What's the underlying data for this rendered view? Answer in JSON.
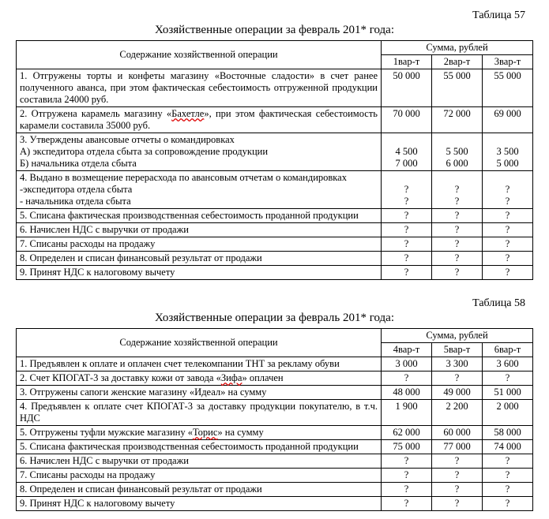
{
  "table57": {
    "label": "Таблица 57",
    "title": "Хозяйственные операции за февраль 201* года:",
    "head_desc": "Содержание хозяйственной операции",
    "head_sum": "Сумма, рублей",
    "variants": [
      "1вар-т",
      "2вар-т",
      "3вар-т"
    ],
    "rows": [
      {
        "desc_pre": "1. Отгружены торты и конфеты магазину «Восточные сладости» в счет ранее полученного аванса, при этом фактическая себестоимость отгруженной продукции составила 24000 руб.",
        "vals": [
          "50 000",
          "55 000",
          "55 000"
        ]
      },
      {
        "desc_pre": "2. Отгружена карамель магазину «",
        "wave": "Бахетле",
        "desc_post": "», при этом фактическая себестоимость карамели составила 35000 руб.",
        "vals": [
          "70 000",
          "72 000",
          "69 000"
        ]
      },
      {
        "desc_pre": "3. Утверждены авансовые отчеты о командировках\nА) экспедитора отдела сбыта за сопровождение продукции\nБ) начальника отдела сбыта",
        "vals": [
          "\n4 500\n7 000",
          "\n5 500\n6 000",
          "\n3 500\n5 000"
        ]
      },
      {
        "desc_pre": "4. Выдано в возмещение перерасхода по авансовым отчетам о командировках\n-экспедитора отдела сбыта\n- начальника отдела сбыта",
        "vals": [
          "\n?\n?",
          "\n?\n?",
          "\n?\n?"
        ]
      },
      {
        "desc_pre": "5. Списана фактическая производственная себестоимость проданной продукции",
        "vals": [
          "?",
          "?",
          "?"
        ]
      },
      {
        "desc_pre": "6. Начислен НДС с выручки от продажи",
        "vals": [
          "?",
          "?",
          "?"
        ]
      },
      {
        "desc_pre": "7. Списаны расходы на продажу",
        "vals": [
          "?",
          "?",
          "?"
        ]
      },
      {
        "desc_pre": "8. Определен и списан финансовый результат от продажи",
        "vals": [
          "?",
          "?",
          "?"
        ]
      },
      {
        "desc_pre": "9. Принят НДС к налоговому вычету",
        "vals": [
          "?",
          "?",
          "?"
        ]
      }
    ]
  },
  "table58": {
    "label": "Таблица 58",
    "title": "Хозяйственные операции за февраль 201* года:",
    "head_desc": "Содержание хозяйственной операции",
    "head_sum": "Сумма, рублей",
    "variants": [
      "4вар-т",
      "5вар-т",
      "6вар-т"
    ],
    "rows": [
      {
        "desc_pre": "1. Предъявлен к оплате и оплачен счет телекомпании ТНТ за рекламу обуви",
        "vals": [
          "3 000",
          "3 300",
          "3 600"
        ]
      },
      {
        "desc_pre": "2. Счет КПОГАТ-3 за доставку кожи от завода «",
        "wave": "Зифа",
        "desc_post": "» оплачен",
        "vals": [
          "?",
          "?",
          "?"
        ]
      },
      {
        "desc_pre": "3. Отгружены сапоги женские магазину «Идеал» на сумму",
        "vals": [
          "48 000",
          "49 000",
          "51 000"
        ]
      },
      {
        "desc_pre": "4. Предъявлен к оплате счет КПОГАТ-3 за доставку продукции покупателю, в т.ч. НДС",
        "vals": [
          "1 900",
          "2 200",
          "2 000"
        ]
      },
      {
        "desc_pre": "5. Отгружены туфли мужские магазину «",
        "wave": "Торис",
        "desc_post": "» на сумму",
        "vals": [
          "62 000",
          "60 000",
          "58 000"
        ]
      },
      {
        "desc_pre": "5. Списана фактическая производственная себестоимость проданной продукции",
        "vals": [
          "75 000",
          "77 000",
          "74 000"
        ]
      },
      {
        "desc_pre": "6. Начислен НДС с выручки от продажи",
        "vals": [
          "?",
          "?",
          "?"
        ]
      },
      {
        "desc_pre": "7. Списаны расходы на продажу",
        "vals": [
          "?",
          "?",
          "?"
        ]
      },
      {
        "desc_pre": "8. Определен и списан финансовый результат от продажи",
        "vals": [
          "?",
          "?",
          "?"
        ]
      },
      {
        "desc_pre": "9. Принят НДС к налоговому вычету",
        "vals": [
          "?",
          "?",
          "?"
        ]
      }
    ]
  }
}
